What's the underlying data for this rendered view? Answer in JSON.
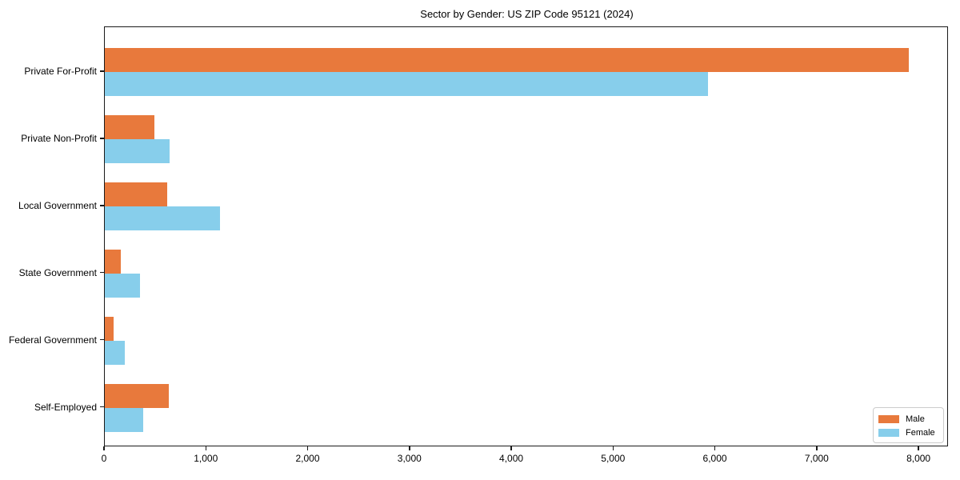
{
  "title": "Sector by Gender: US ZIP Code 95121 (2024)",
  "chart_data": {
    "type": "bar",
    "orientation": "horizontal",
    "title": "Sector by Gender: US ZIP Code 95121 (2024)",
    "xlabel": "",
    "ylabel": "",
    "categories": [
      "Private For-Profit",
      "Private Non-Profit",
      "Local Government",
      "State Government",
      "Federal Government",
      "Self-Employed"
    ],
    "series": [
      {
        "name": "Male",
        "color": "#e8793c",
        "values": [
          7900,
          490,
          615,
          155,
          90,
          625
        ]
      },
      {
        "name": "Female",
        "color": "#87ceeb",
        "values": [
          5925,
          640,
          1130,
          345,
          195,
          375
        ]
      }
    ],
    "xlim": [
      0,
      8290
    ],
    "xticks": [
      0,
      1000,
      2000,
      3000,
      4000,
      5000,
      6000,
      7000,
      8000
    ],
    "xtick_labels": [
      "0",
      "1,000",
      "2,000",
      "3,000",
      "4,000",
      "5,000",
      "6,000",
      "7,000",
      "8,000"
    ],
    "grid": false,
    "legend": {
      "position": "lower right",
      "entries": [
        "Male",
        "Female"
      ]
    }
  }
}
